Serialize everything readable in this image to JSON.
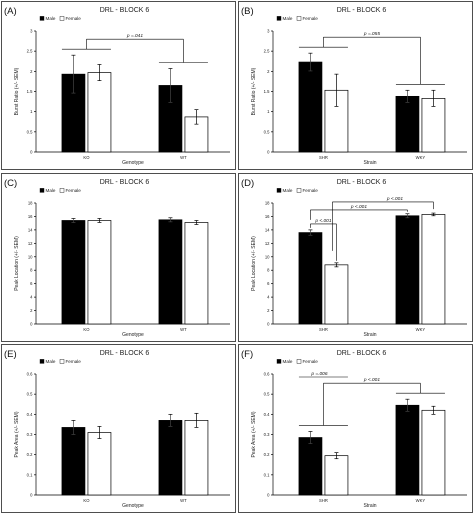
{
  "colors": {
    "male": "#000000",
    "female": "#ffffff",
    "stroke": "#000000"
  },
  "legend": {
    "male": "Male",
    "female": "Female"
  },
  "chart_data": [
    {
      "type": "bar",
      "panel": "(A)",
      "title": "DRL - BLOCK 6",
      "xlabel": "Genotype",
      "ylabel": "Burst Ratio (+/- SEM)",
      "ylim": [
        0,
        3
      ],
      "yticks": [
        "0",
        "0.5",
        "1",
        "1.5",
        "2",
        "2.5",
        "3"
      ],
      "categories": [
        "KO",
        "WT"
      ],
      "series": [
        {
          "name": "Male",
          "values": [
            1.93,
            1.65
          ],
          "errors": [
            0.47,
            0.42
          ]
        },
        {
          "name": "Female",
          "values": [
            1.97,
            0.87
          ],
          "errors": [
            0.2,
            0.18
          ]
        }
      ],
      "annotations": [
        {
          "text": "p =.041",
          "type": "between-categories"
        }
      ]
    },
    {
      "type": "bar",
      "panel": "(B)",
      "title": "DRL - BLOCK 6",
      "xlabel": "Strain",
      "ylabel": "Burst Ratio (+/- SEM)",
      "ylim": [
        0,
        3
      ],
      "yticks": [
        "0",
        "0.5",
        "1",
        "1.5",
        "2",
        "2.5",
        "3"
      ],
      "categories": [
        "SHR",
        "WKY"
      ],
      "series": [
        {
          "name": "Male",
          "values": [
            2.23,
            1.38
          ],
          "errors": [
            0.22,
            0.15
          ]
        },
        {
          "name": "Female",
          "values": [
            1.53,
            1.33
          ],
          "errors": [
            0.4,
            0.2
          ]
        }
      ],
      "annotations": [
        {
          "text": "p =.055",
          "type": "between-categories"
        }
      ]
    },
    {
      "type": "bar",
      "panel": "(C)",
      "title": "DRL - BLOCK 6",
      "xlabel": "Genotype",
      "ylabel": "Peak Location (+/- SEM)",
      "ylim": [
        0,
        18
      ],
      "yticks": [
        "0",
        "2",
        "4",
        "6",
        "8",
        "10",
        "12",
        "14",
        "16",
        "18"
      ],
      "categories": [
        "KO",
        "WT"
      ],
      "series": [
        {
          "name": "Male",
          "values": [
            15.4,
            15.5
          ],
          "errors": [
            0.3,
            0.3
          ]
        },
        {
          "name": "Female",
          "values": [
            15.4,
            15.1
          ],
          "errors": [
            0.3,
            0.3
          ]
        }
      ],
      "annotations": []
    },
    {
      "type": "bar",
      "panel": "(D)",
      "title": "DRL - BLOCK 6",
      "xlabel": "Strain",
      "ylabel": "Peak Location (+/- SEM)",
      "ylim": [
        0,
        18
      ],
      "yticks": [
        "0",
        "2",
        "4",
        "6",
        "8",
        "10",
        "12",
        "14",
        "16",
        "18"
      ],
      "categories": [
        "SHR",
        "WKY"
      ],
      "series": [
        {
          "name": "Male",
          "values": [
            13.6,
            16.1
          ],
          "errors": [
            0.4,
            0.3
          ]
        },
        {
          "name": "Female",
          "values": [
            8.8,
            16.3
          ],
          "errors": [
            0.3,
            0.2
          ]
        }
      ],
      "annotations": [
        {
          "text": "p <.001",
          "type": "within-SHR"
        },
        {
          "text": "p <.001",
          "type": "male-comparison"
        },
        {
          "text": "p <.001",
          "type": "female-comparison"
        }
      ]
    },
    {
      "type": "bar",
      "panel": "(E)",
      "title": "DRL - BLOCK 6",
      "xlabel": "Genotype",
      "ylabel": "Peak Area (+/- SEM)",
      "ylim": [
        0,
        0.6
      ],
      "yticks": [
        "0",
        "0.1",
        "0.2",
        "0.3",
        "0.4",
        "0.5",
        "0.6"
      ],
      "categories": [
        "KO",
        "WT"
      ],
      "series": [
        {
          "name": "Male",
          "values": [
            0.335,
            0.37
          ],
          "errors": [
            0.035,
            0.03
          ]
        },
        {
          "name": "Female",
          "values": [
            0.31,
            0.37
          ],
          "errors": [
            0.03,
            0.035
          ]
        }
      ],
      "annotations": []
    },
    {
      "type": "bar",
      "panel": "(F)",
      "title": "DRL - BLOCK 6",
      "xlabel": "Strain",
      "ylabel": "Peak Area (+/- SEM)",
      "ylim": [
        0,
        0.6
      ],
      "yticks": [
        "0",
        "0.1",
        "0.2",
        "0.3",
        "0.4",
        "0.5",
        "0.6"
      ],
      "categories": [
        "SHR",
        "WKY"
      ],
      "series": [
        {
          "name": "Male",
          "values": [
            0.285,
            0.445
          ],
          "errors": [
            0.03,
            0.03
          ]
        },
        {
          "name": "Female",
          "values": [
            0.195,
            0.42
          ],
          "errors": [
            0.015,
            0.02
          ]
        }
      ],
      "annotations": [
        {
          "text": "p =.006",
          "type": "within-SHR-top"
        },
        {
          "text": "p <.001",
          "type": "between-categories"
        }
      ]
    }
  ]
}
